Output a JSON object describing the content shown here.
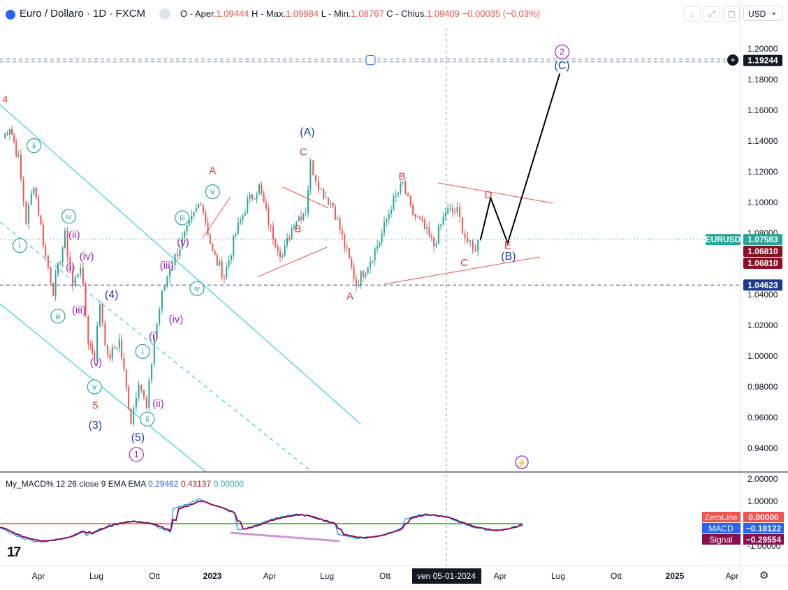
{
  "header": {
    "title": "Euro / Dollaro · 1D · FXCM",
    "open_label": "O - Aper.",
    "open": "1.09444",
    "high_label": "H - Max.",
    "high": "1.09984",
    "low_label": "L - Min.",
    "low": "1.08767",
    "close_label": "C - Chius.",
    "close": "1.09409",
    "change": "−0.00035 (−0.03%)",
    "currency": "USD"
  },
  "macd": {
    "title": "My_MACD% 12 26 close 9 EMA EMA",
    "v1": "0.29462",
    "v2": "0.43137",
    "v3": "0.00000",
    "zeroline_label": "ZeroLine",
    "zeroline_value": "0.00000",
    "macd_label": "MACD",
    "macd_value": "−0.18122",
    "signal_label": "Signal",
    "signal_value": "−0.29554",
    "axis_ticks": [
      "2.00000",
      "1.00000",
      "-1.00000"
    ],
    "colors": {
      "macd": "#2196f3",
      "signal": "#880e4f",
      "zeroline": "#ef5350",
      "zero_green": "#4caf50"
    }
  },
  "chart_data": {
    "type": "candlestick",
    "symbol": "EURUSD",
    "x_ticks": [
      "Apr",
      "Lug",
      "Ott",
      "2023",
      "Apr",
      "Lug",
      "Ott",
      "ven 05-01-2024",
      "Apr",
      "Lug",
      "Ott",
      "2025",
      "Apr"
    ],
    "y_ticks": [
      "1.20000",
      "1.18000",
      "1.16000",
      "1.14000",
      "1.12000",
      "1.10000",
      "1.08000",
      "1.06000",
      "1.04000",
      "1.02000",
      "1.00000",
      "0.98000",
      "0.96000",
      "0.94000"
    ],
    "ylim": [
      0.925,
      1.205
    ],
    "price_labels": {
      "level_top": "1.19244",
      "current_symbol": "EURUSD",
      "current": "1.07583",
      "low1": "1.06810",
      "low2": "1.06810",
      "level_bottom": "1.04623"
    },
    "levels": {
      "top": 1.19244,
      "current": 1.07583,
      "bottom": 1.04623
    },
    "price_path": [
      [
        0,
        1.142
      ],
      [
        0.9,
        1.15
      ],
      [
        2,
        1.128
      ],
      [
        3,
        1.088
      ],
      [
        4,
        1.113
      ],
      [
        5.5,
        1.065
      ],
      [
        6.5,
        1.043
      ],
      [
        8,
        1.078
      ],
      [
        9,
        1.045
      ],
      [
        10,
        1.06
      ],
      [
        11,
        1.01
      ],
      [
        11.8,
        1.0
      ],
      [
        12.5,
        1.035
      ],
      [
        13.5,
        0.998
      ],
      [
        15,
        1.01
      ],
      [
        16.5,
        0.958
      ],
      [
        17.5,
        0.985
      ],
      [
        18.5,
        0.965
      ],
      [
        19.5,
        1.012
      ],
      [
        20.5,
        1.04
      ],
      [
        21.5,
        1.058
      ],
      [
        22.5,
        1.068
      ],
      [
        24,
        1.085
      ],
      [
        25.5,
        1.102
      ],
      [
        27,
        1.067
      ],
      [
        28.5,
        1.052
      ],
      [
        30,
        1.08
      ],
      [
        31.5,
        1.1
      ],
      [
        33,
        1.11
      ],
      [
        34.5,
        1.082
      ],
      [
        36,
        1.065
      ],
      [
        37.5,
        1.088
      ],
      [
        39,
        1.095
      ],
      [
        39.6,
        1.125
      ],
      [
        41,
        1.108
      ],
      [
        42.5,
        1.098
      ],
      [
        44,
        1.072
      ],
      [
        45.5,
        1.047
      ],
      [
        47,
        1.06
      ],
      [
        48.5,
        1.075
      ],
      [
        50,
        1.098
      ],
      [
        51.5,
        1.112
      ],
      [
        52.5,
        1.095
      ],
      [
        54,
        1.085
      ],
      [
        55.5,
        1.072
      ],
      [
        57,
        1.094
      ],
      [
        58.5,
        1.094
      ],
      [
        59.5,
        1.078
      ],
      [
        60.5,
        1.068
      ],
      [
        61.5,
        1.077
      ]
    ],
    "projection": [
      [
        61.5,
        1.0758
      ],
      [
        62.8,
        1.103
      ],
      [
        65,
        1.0735
      ],
      [
        71.7,
        1.184
      ]
    ],
    "wave_labels": [
      {
        "t": "4",
        "x": 0.3,
        "y": 1.167,
        "c": "red"
      },
      {
        "t": "ii",
        "x": 4,
        "y": 1.137,
        "c": "green",
        "circle": true
      },
      {
        "t": "iv",
        "x": 8.5,
        "y": 1.091,
        "c": "green",
        "circle": true
      },
      {
        "t": "(ii)",
        "x": 9.2,
        "y": 1.079,
        "c": "purple"
      },
      {
        "t": "i",
        "x": 2.2,
        "y": 1.072,
        "c": "green",
        "circle": true
      },
      {
        "t": "(iv)",
        "x": 10.8,
        "y": 1.065,
        "c": "purple"
      },
      {
        "t": "(i)",
        "x": 8.7,
        "y": 1.058,
        "c": "purple"
      },
      {
        "t": "(iii)",
        "x": 9.8,
        "y": 1.03,
        "c": "purple"
      },
      {
        "t": "iii",
        "x": 7.1,
        "y": 1.026,
        "c": "green",
        "circle": true
      },
      {
        "t": "(4)",
        "x": 14,
        "y": 1.04,
        "c": "blue"
      },
      {
        "t": "(v)",
        "x": 12,
        "y": 0.996,
        "c": "purple"
      },
      {
        "t": "v",
        "x": 11.8,
        "y": 0.98,
        "c": "green",
        "circle": true
      },
      {
        "t": "5",
        "x": 11.9,
        "y": 0.968,
        "c": "red"
      },
      {
        "t": "(3)",
        "x": 11.9,
        "y": 0.955,
        "c": "blue"
      },
      {
        "t": "(i)",
        "x": 19.4,
        "y": 1.013,
        "c": "purple"
      },
      {
        "t": "i",
        "x": 18,
        "y": 1.003,
        "c": "green",
        "circle": true
      },
      {
        "t": "(ii)",
        "x": 20,
        "y": 0.969,
        "c": "purple"
      },
      {
        "t": "ii",
        "x": 18.6,
        "y": 0.959,
        "c": "green",
        "circle": true
      },
      {
        "t": "(5)",
        "x": 17.4,
        "y": 0.947,
        "c": "blue"
      },
      {
        "t": "1",
        "x": 17.2,
        "y": 0.936,
        "c": "purple",
        "circle": true
      },
      {
        "t": "(iii)",
        "x": 21.1,
        "y": 1.059,
        "c": "purple"
      },
      {
        "t": "(iv)",
        "x": 22.3,
        "y": 1.024,
        "c": "purple"
      },
      {
        "t": "(v)",
        "x": 23.2,
        "y": 1.074,
        "c": "purple"
      },
      {
        "t": "iii",
        "x": 23.1,
        "y": 1.09,
        "c": "green",
        "circle": true
      },
      {
        "t": "iv",
        "x": 25,
        "y": 1.044,
        "c": "green",
        "circle": true
      },
      {
        "t": "v",
        "x": 27,
        "y": 1.107,
        "c": "green",
        "circle": true
      },
      {
        "t": "A",
        "x": 27,
        "y": 1.121,
        "c": "red"
      },
      {
        "t": "B",
        "x": 38,
        "y": 1.083,
        "c": "red"
      },
      {
        "t": "C",
        "x": 38.7,
        "y": 1.133,
        "c": "red"
      },
      {
        "t": "(A)",
        "x": 39.2,
        "y": 1.146,
        "c": "blue"
      },
      {
        "t": "A",
        "x": 44.7,
        "y": 1.039,
        "c": "red"
      },
      {
        "t": "B",
        "x": 51.4,
        "y": 1.117,
        "c": "red"
      },
      {
        "t": "D",
        "x": 62.5,
        "y": 1.105,
        "c": "red"
      },
      {
        "t": "E",
        "x": 65,
        "y": 1.072,
        "c": "red"
      },
      {
        "t": "(B)",
        "x": 65.1,
        "y": 1.065,
        "c": "blue"
      },
      {
        "t": "C",
        "x": 59.4,
        "y": 1.061,
        "c": "red"
      },
      {
        "t": "2",
        "x": 72,
        "y": 1.198,
        "c": "purple",
        "circle": true
      },
      {
        "t": "(C)",
        "x": 72,
        "y": 1.189,
        "c": "blue"
      }
    ]
  }
}
